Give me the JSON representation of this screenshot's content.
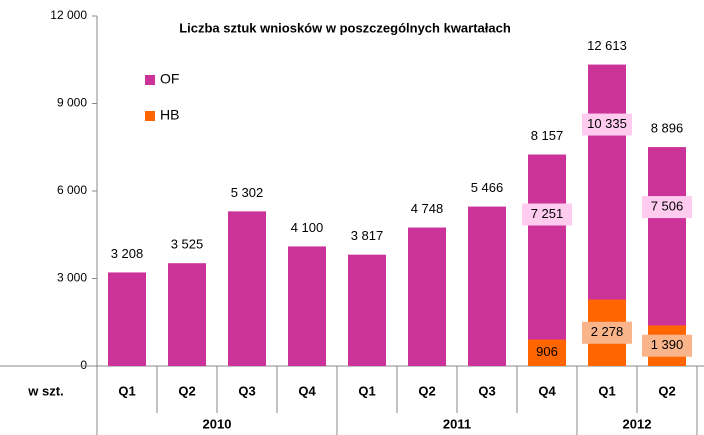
{
  "chart_data": {
    "type": "bar",
    "title": "Liczba sztuk wniosków  w  poszczególnych  kwartałach",
    "unit_label": "w szt.",
    "groups": [
      {
        "name": "2010",
        "categories": [
          "Q1",
          "Q2",
          "Q3",
          "Q4"
        ]
      },
      {
        "name": "2011",
        "categories": [
          "Q1",
          "Q2",
          "Q3",
          "Q4"
        ]
      },
      {
        "name": "2012",
        "categories": [
          "Q1",
          "Q2"
        ]
      }
    ],
    "series": [
      {
        "name": "OF",
        "color": "#cc3399",
        "values": [
          3208,
          3525,
          5302,
          4100,
          3817,
          4748,
          5466,
          7251,
          10335,
          7506
        ],
        "value_labels": [
          null,
          null,
          null,
          null,
          null,
          null,
          null,
          "7 251",
          "10 335",
          "7 506"
        ]
      },
      {
        "name": "HB",
        "color": "#ff6600",
        "values": [
          null,
          null,
          null,
          null,
          null,
          null,
          null,
          906,
          2278,
          1390
        ],
        "value_labels": [
          null,
          null,
          null,
          null,
          null,
          null,
          null,
          "906",
          "2 278",
          "1 390"
        ]
      }
    ],
    "totals": [
      3208,
      3525,
      5302,
      4100,
      3817,
      4748,
      5466,
      8157,
      12613,
      8896
    ],
    "total_labels": [
      "3 208",
      "3 525",
      "5 302",
      "4 100",
      "3 817",
      "4 748",
      "5 466",
      "8 157",
      "12 613",
      "8 896"
    ],
    "ylim": [
      0,
      12000
    ],
    "yticks": [
      0,
      {
        "value": 3000,
        "label": "3 000"
      },
      {
        "value": 6000,
        "label": "6 000"
      },
      {
        "value": 9000,
        "label": "9 000"
      },
      {
        "value": 12000,
        "label": "12 000"
      }
    ],
    "grid": false,
    "legend": "upper-left"
  }
}
